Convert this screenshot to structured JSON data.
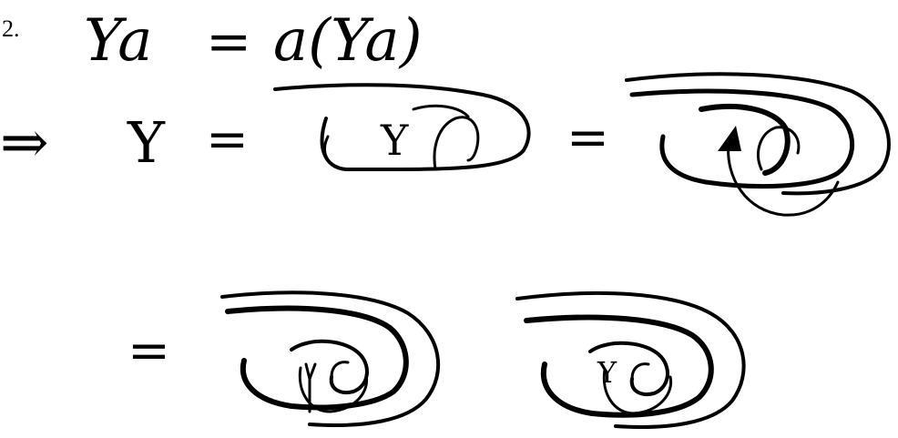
{
  "diagram": {
    "label": "2.",
    "equation_left": "Ya",
    "equation_eq": "=",
    "equation_right": "a(Ya)",
    "implies_symbol": "⇒",
    "Y_symbol": "Y",
    "eq_symbol": "=",
    "inner_Y": "Y",
    "ink_color": "#000000",
    "background_color": "#ffffff"
  }
}
